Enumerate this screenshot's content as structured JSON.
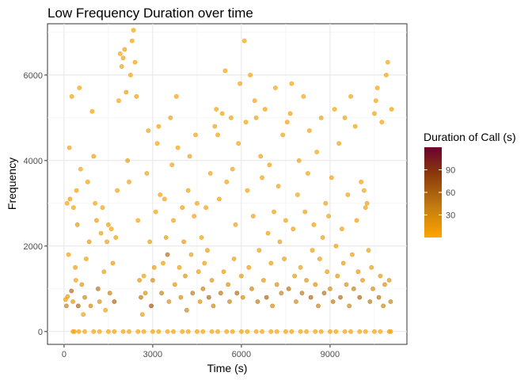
{
  "chart_data": {
    "type": "scatter",
    "title": "Low Frequency Duration over time",
    "xlabel": "Time (s)",
    "ylabel": "Frequency",
    "xlim": [
      -560,
      11600
    ],
    "ylim": [
      -300,
      7200
    ],
    "xticks": [
      0,
      3000,
      6000,
      9000
    ],
    "yticks": [
      0,
      2000,
      4000,
      6000
    ],
    "xtick_labels": [
      "0",
      "3000",
      "6000",
      "9000"
    ],
    "ytick_labels": [
      "0",
      "2000",
      "4000",
      "6000"
    ],
    "grid": true,
    "legend": {
      "title": "Duration of Call (s)",
      "position": "right",
      "range": [
        0,
        120
      ],
      "ticks": [
        30,
        60,
        90
      ],
      "tick_labels": [
        "30",
        "60",
        "90"
      ],
      "colors": [
        "#FFA500",
        "#C07A10",
        "#8B3A0A",
        "#6B0030"
      ]
    },
    "marker_color_low": "#FFA500",
    "marker_color_high": "#6B0030",
    "points": [
      [
        50,
        750,
        10
      ],
      [
        80,
        600,
        40
      ],
      [
        120,
        820,
        15
      ],
      [
        150,
        1800,
        8
      ],
      [
        200,
        3100,
        12
      ],
      [
        250,
        950,
        55
      ],
      [
        300,
        700,
        20
      ],
      [
        350,
        0,
        5
      ],
      [
        400,
        1200,
        10
      ],
      [
        450,
        2500,
        18
      ],
      [
        100,
        3000,
        6
      ],
      [
        180,
        4300,
        9
      ],
      [
        260,
        5500,
        7
      ],
      [
        320,
        2900,
        11
      ],
      [
        380,
        1500,
        14
      ],
      [
        420,
        3300,
        8
      ],
      [
        480,
        600,
        60
      ],
      [
        520,
        5700,
        6
      ],
      [
        560,
        3800,
        7
      ],
      [
        600,
        1100,
        20
      ],
      [
        650,
        400,
        10
      ],
      [
        700,
        800,
        35
      ],
      [
        750,
        1700,
        12
      ],
      [
        800,
        3500,
        9
      ],
      [
        850,
        2100,
        16
      ],
      [
        900,
        600,
        30
      ],
      [
        950,
        5150,
        8
      ],
      [
        1000,
        4100,
        10
      ],
      [
        1050,
        3000,
        7
      ],
      [
        1100,
        2600,
        14
      ],
      [
        1150,
        1000,
        50
      ],
      [
        1200,
        700,
        25
      ],
      [
        1250,
        2300,
        10
      ],
      [
        1300,
        2900,
        9
      ],
      [
        1350,
        1400,
        12
      ],
      [
        1400,
        500,
        8
      ],
      [
        1450,
        2100,
        11
      ],
      [
        1500,
        2500,
        13
      ],
      [
        1550,
        900,
        40
      ],
      [
        1600,
        2400,
        9
      ],
      [
        1650,
        1600,
        15
      ],
      [
        1700,
        700,
        60
      ],
      [
        1750,
        2200,
        10
      ],
      [
        1800,
        3300,
        8
      ],
      [
        1850,
        5400,
        7
      ],
      [
        1900,
        6500,
        6
      ],
      [
        1950,
        6200,
        9
      ],
      [
        2000,
        6400,
        8
      ],
      [
        2050,
        6600,
        10
      ],
      [
        2100,
        5600,
        12
      ],
      [
        2150,
        4000,
        14
      ],
      [
        2200,
        3500,
        9
      ],
      [
        2250,
        6000,
        7
      ],
      [
        2300,
        6800,
        8
      ],
      [
        2350,
        7050,
        6
      ],
      [
        2400,
        6300,
        9
      ],
      [
        2450,
        5500,
        11
      ],
      [
        2500,
        2600,
        7
      ],
      [
        2550,
        1200,
        20
      ],
      [
        2600,
        800,
        45
      ],
      [
        2650,
        400,
        15
      ],
      [
        2700,
        1300,
        10
      ],
      [
        2750,
        900,
        25
      ],
      [
        2800,
        3700,
        8
      ],
      [
        2850,
        4700,
        9
      ],
      [
        2900,
        2100,
        12
      ],
      [
        2950,
        600,
        70
      ],
      [
        3000,
        1200,
        30
      ],
      [
        3050,
        1500,
        15
      ],
      [
        3100,
        2800,
        9
      ],
      [
        3150,
        4400,
        7
      ],
      [
        3200,
        4800,
        8
      ],
      [
        3250,
        3200,
        10
      ],
      [
        3300,
        900,
        40
      ],
      [
        3350,
        1600,
        12
      ],
      [
        3400,
        3100,
        9
      ],
      [
        3450,
        2200,
        14
      ],
      [
        3500,
        1800,
        55
      ],
      [
        3550,
        700,
        25
      ],
      [
        3600,
        5000,
        8
      ],
      [
        3650,
        3900,
        9
      ],
      [
        3700,
        2600,
        11
      ],
      [
        3750,
        1100,
        20
      ],
      [
        3800,
        5500,
        7
      ],
      [
        3850,
        4300,
        8
      ],
      [
        3900,
        1500,
        13
      ],
      [
        3950,
        800,
        30
      ],
      [
        4000,
        2900,
        10
      ],
      [
        4050,
        2100,
        16
      ],
      [
        4100,
        1300,
        22
      ],
      [
        4150,
        500,
        35
      ],
      [
        4200,
        3300,
        9
      ],
      [
        4250,
        4100,
        8
      ],
      [
        4300,
        1800,
        12
      ],
      [
        4350,
        900,
        45
      ],
      [
        4400,
        2700,
        11
      ],
      [
        4450,
        4600,
        7
      ],
      [
        4500,
        3000,
        9
      ],
      [
        4550,
        1400,
        15
      ],
      [
        4600,
        700,
        25
      ],
      [
        4650,
        2200,
        10
      ],
      [
        4700,
        1000,
        40
      ],
      [
        4750,
        1600,
        12
      ],
      [
        4800,
        2900,
        9
      ],
      [
        4850,
        1900,
        14
      ],
      [
        4900,
        800,
        60
      ],
      [
        4950,
        3700,
        8
      ],
      [
        5000,
        1200,
        20
      ],
      [
        5050,
        600,
        35
      ],
      [
        5100,
        4800,
        7
      ],
      [
        5150,
        5200,
        8
      ],
      [
        5200,
        4600,
        9
      ],
      [
        5250,
        3100,
        11
      ],
      [
        5300,
        900,
        50
      ],
      [
        5350,
        5100,
        8
      ],
      [
        5400,
        1400,
        15
      ],
      [
        5450,
        6100,
        7
      ],
      [
        5500,
        3500,
        9
      ],
      [
        5550,
        1100,
        25
      ],
      [
        5600,
        700,
        40
      ],
      [
        5650,
        5000,
        8
      ],
      [
        5700,
        3800,
        9
      ],
      [
        5750,
        1700,
        13
      ],
      [
        5800,
        2500,
        10
      ],
      [
        5850,
        900,
        55
      ],
      [
        5900,
        4400,
        7
      ],
      [
        5950,
        5800,
        8
      ],
      [
        6000,
        1300,
        18
      ],
      [
        6050,
        800,
        30
      ],
      [
        6100,
        6800,
        6
      ],
      [
        6150,
        4900,
        8
      ],
      [
        6200,
        3300,
        9
      ],
      [
        6250,
        1500,
        14
      ],
      [
        6300,
        6000,
        7
      ],
      [
        6350,
        1000,
        35
      ],
      [
        6400,
        2700,
        10
      ],
      [
        6450,
        5400,
        8
      ],
      [
        6500,
        5000,
        9
      ],
      [
        6550,
        700,
        45
      ],
      [
        6600,
        1900,
        12
      ],
      [
        6650,
        4100,
        8
      ],
      [
        6700,
        3600,
        9
      ],
      [
        6750,
        1200,
        20
      ],
      [
        6800,
        5200,
        8
      ],
      [
        6850,
        800,
        60
      ],
      [
        6900,
        2300,
        11
      ],
      [
        6950,
        3900,
        9
      ],
      [
        7000,
        1600,
        13
      ],
      [
        7050,
        600,
        30
      ],
      [
        7100,
        2800,
        10
      ],
      [
        7150,
        5700,
        7
      ],
      [
        7200,
        1100,
        25
      ],
      [
        7250,
        3400,
        9
      ],
      [
        7300,
        2100,
        12
      ],
      [
        7350,
        900,
        40
      ],
      [
        7400,
        4600,
        8
      ],
      [
        7450,
        1700,
        14
      ],
      [
        7500,
        2600,
        10
      ],
      [
        7550,
        4900,
        8
      ],
      [
        7600,
        1000,
        50
      ],
      [
        7650,
        5100,
        9
      ],
      [
        7700,
        5800,
        7
      ],
      [
        7750,
        2400,
        11
      ],
      [
        7800,
        1300,
        18
      ],
      [
        7850,
        700,
        35
      ],
      [
        7900,
        3200,
        9
      ],
      [
        7950,
        4000,
        8
      ],
      [
        8000,
        1500,
        13
      ],
      [
        8050,
        900,
        45
      ],
      [
        8100,
        5500,
        7
      ],
      [
        8150,
        2800,
        10
      ],
      [
        8200,
        1200,
        22
      ],
      [
        8250,
        3700,
        9
      ],
      [
        8300,
        4700,
        8
      ],
      [
        8350,
        800,
        60
      ],
      [
        8400,
        1900,
        12
      ],
      [
        8450,
        2500,
        10
      ],
      [
        8500,
        1100,
        25
      ],
      [
        8550,
        4200,
        8
      ],
      [
        8600,
        600,
        40
      ],
      [
        8650,
        1700,
        13
      ],
      [
        8700,
        5000,
        8
      ],
      [
        8750,
        2200,
        11
      ],
      [
        8800,
        900,
        50
      ],
      [
        8850,
        3000,
        9
      ],
      [
        8900,
        1400,
        15
      ],
      [
        8950,
        2700,
        10
      ],
      [
        9000,
        1000,
        30
      ],
      [
        9050,
        3600,
        9
      ],
      [
        9100,
        700,
        45
      ],
      [
        9150,
        5200,
        7
      ],
      [
        9200,
        2000,
        12
      ],
      [
        9250,
        1300,
        18
      ],
      [
        9300,
        4400,
        8
      ],
      [
        9350,
        800,
        55
      ],
      [
        9400,
        2400,
        10
      ],
      [
        9450,
        1600,
        14
      ],
      [
        9500,
        5000,
        9
      ],
      [
        9550,
        1100,
        25
      ],
      [
        9600,
        3200,
        9
      ],
      [
        9650,
        600,
        35
      ],
      [
        9700,
        5500,
        7
      ],
      [
        9750,
        1800,
        13
      ],
      [
        9800,
        1000,
        40
      ],
      [
        9850,
        4800,
        8
      ],
      [
        9900,
        2600,
        10
      ],
      [
        9950,
        1400,
        16
      ],
      [
        10000,
        800,
        60
      ],
      [
        10050,
        3500,
        9
      ],
      [
        10100,
        1200,
        20
      ],
      [
        10150,
        3300,
        8
      ],
      [
        10200,
        2900,
        9
      ],
      [
        10250,
        3000,
        10
      ],
      [
        10300,
        1900,
        12
      ],
      [
        10350,
        700,
        45
      ],
      [
        10400,
        1500,
        14
      ],
      [
        10450,
        1000,
        30
      ],
      [
        10500,
        5100,
        8
      ],
      [
        10550,
        5400,
        7
      ],
      [
        10600,
        5700,
        9
      ],
      [
        10650,
        800,
        50
      ],
      [
        10700,
        1300,
        18
      ],
      [
        10750,
        4900,
        8
      ],
      [
        10800,
        600,
        35
      ],
      [
        10850,
        1100,
        25
      ],
      [
        10900,
        6000,
        7
      ],
      [
        10950,
        6300,
        6
      ],
      [
        11000,
        1200,
        20
      ],
      [
        11050,
        700,
        40
      ],
      [
        11080,
        5200,
        8
      ],
      [
        300,
        0,
        5
      ],
      [
        700,
        0,
        6
      ],
      [
        1200,
        0,
        5
      ],
      [
        1700,
        0,
        7
      ],
      [
        2200,
        0,
        6
      ],
      [
        2700,
        0,
        5
      ],
      [
        3200,
        0,
        6
      ],
      [
        3700,
        0,
        7
      ],
      [
        4200,
        0,
        5
      ],
      [
        4700,
        0,
        6
      ],
      [
        5200,
        0,
        5
      ],
      [
        5700,
        0,
        7
      ],
      [
        6200,
        0,
        6
      ],
      [
        6700,
        0,
        5
      ],
      [
        7200,
        0,
        6
      ],
      [
        7700,
        0,
        7
      ],
      [
        8200,
        0,
        5
      ],
      [
        8700,
        0,
        6
      ],
      [
        9200,
        0,
        5
      ],
      [
        9700,
        0,
        7
      ],
      [
        10200,
        0,
        6
      ],
      [
        10700,
        0,
        5
      ],
      [
        11050,
        0,
        6
      ],
      [
        500,
        0,
        8
      ],
      [
        1000,
        0,
        7
      ],
      [
        1500,
        0,
        6
      ],
      [
        2000,
        0,
        5
      ],
      [
        2500,
        0,
        7
      ],
      [
        3000,
        0,
        6
      ],
      [
        3500,
        0,
        5
      ],
      [
        4000,
        0,
        6
      ],
      [
        4500,
        0,
        7
      ],
      [
        5000,
        0,
        5
      ],
      [
        5500,
        0,
        6
      ],
      [
        6000,
        0,
        7
      ],
      [
        6500,
        0,
        5
      ],
      [
        7000,
        0,
        6
      ],
      [
        7500,
        0,
        7
      ],
      [
        8000,
        0,
        5
      ],
      [
        8500,
        0,
        6
      ],
      [
        9000,
        0,
        7
      ],
      [
        9500,
        0,
        5
      ],
      [
        10000,
        0,
        6
      ],
      [
        10500,
        0,
        7
      ],
      [
        11000,
        0,
        5
      ]
    ]
  }
}
